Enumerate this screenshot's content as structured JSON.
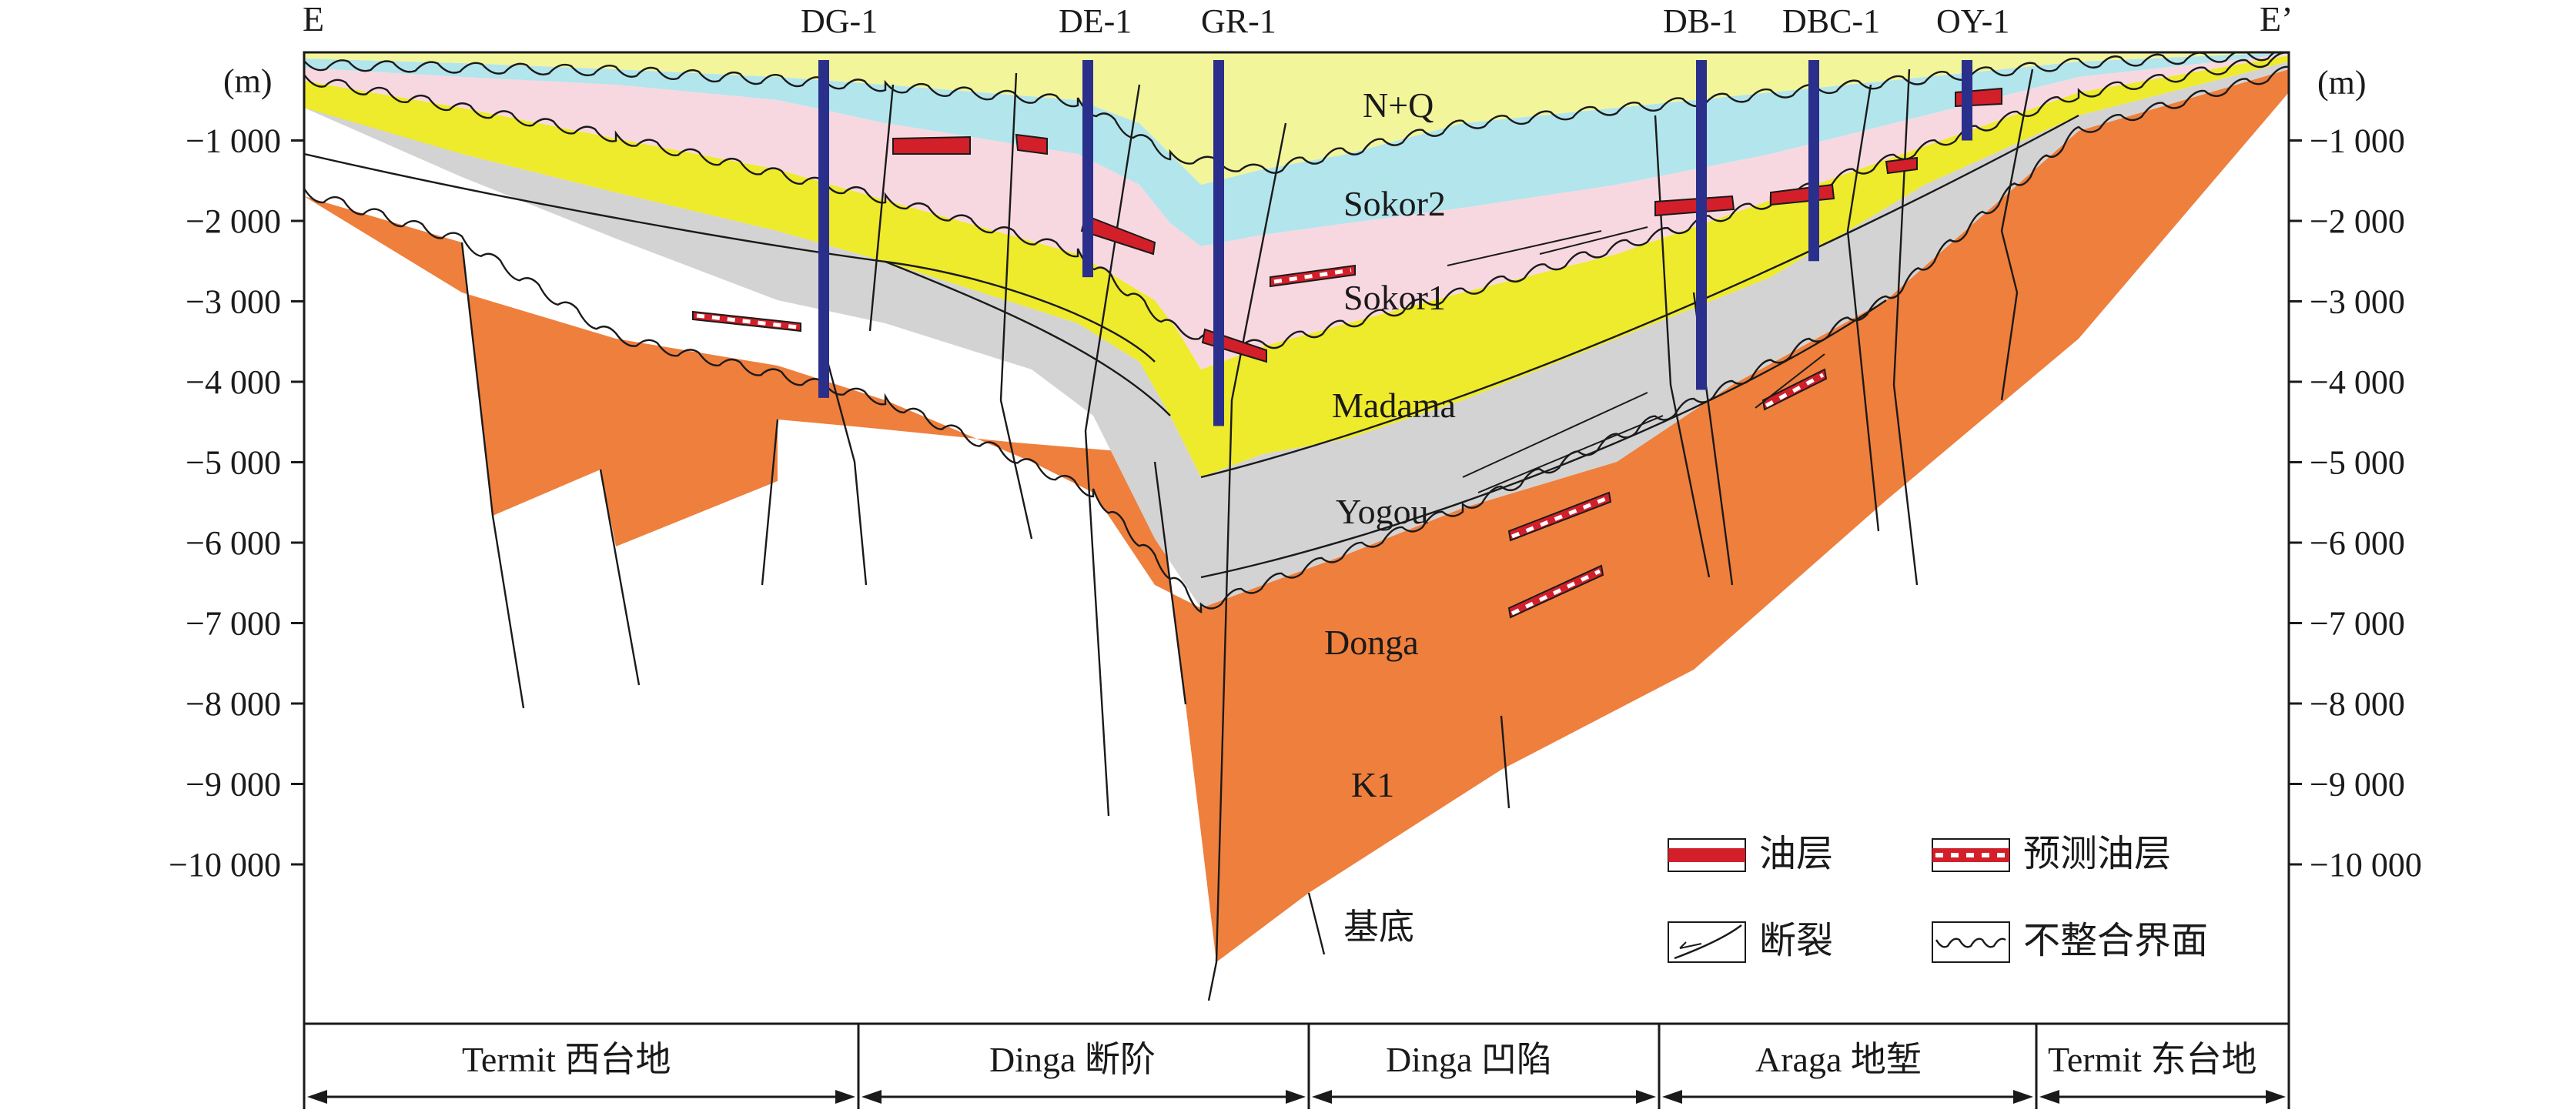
{
  "section": {
    "end_left": "E",
    "end_right": "E’",
    "depth_unit_left": "(m)",
    "depth_unit_right": "(m)",
    "depth_ticks": [
      {
        "value": -1000,
        "label": "−1 000"
      },
      {
        "value": -2000,
        "label": "−2 000"
      },
      {
        "value": -3000,
        "label": "−3 000"
      },
      {
        "value": -4000,
        "label": "−4 000"
      },
      {
        "value": -5000,
        "label": "−5 000"
      },
      {
        "value": -6000,
        "label": "−6 000"
      },
      {
        "value": -7000,
        "label": "−7 000"
      },
      {
        "value": -8000,
        "label": "−8 000"
      },
      {
        "value": -9000,
        "label": "−9 000"
      },
      {
        "value": -10000,
        "label": "−10 000"
      }
    ]
  },
  "wells": [
    {
      "id": "dg1",
      "label": "DG-1"
    },
    {
      "id": "de1",
      "label": "DE-1"
    },
    {
      "id": "gr1",
      "label": "GR-1"
    },
    {
      "id": "db1",
      "label": "DB-1"
    },
    {
      "id": "dbc1",
      "label": "DBC-1"
    },
    {
      "id": "oy1",
      "label": "OY-1"
    }
  ],
  "formations": [
    {
      "id": "nq",
      "label": "N+Q",
      "color": "#f2f59a"
    },
    {
      "id": "sokor2",
      "label": "Sokor2",
      "color": "#b3e5ec"
    },
    {
      "id": "sokor1",
      "label": "Sokor1",
      "color": "#f8d8e0"
    },
    {
      "id": "madama",
      "label": "Madama",
      "color": "#eeea2c"
    },
    {
      "id": "yogou",
      "label": "Yogou",
      "color": "#d3d3d3"
    },
    {
      "id": "donga",
      "label": "Donga",
      "color": "#d3d3d3"
    },
    {
      "id": "k1",
      "label": "K1",
      "color": "#ef7f3c"
    },
    {
      "id": "basement",
      "label": "基底",
      "color": "#ffffff"
    }
  ],
  "legend": {
    "oil_layer": "油层",
    "predicted_oil_layer": "预测油层",
    "fault": "断裂",
    "unconformity": "不整合界面"
  },
  "regions": [
    {
      "id": "termit-west",
      "label": "Termit 西台地"
    },
    {
      "id": "dinga-step",
      "label": "Dinga 断阶"
    },
    {
      "id": "dinga-sag",
      "label": "Dinga 凹陷"
    },
    {
      "id": "araga-graben",
      "label": "Araga 地堑"
    },
    {
      "id": "termit-east",
      "label": "Termit 东台地"
    }
  ],
  "colors": {
    "well": "#2a2f8c",
    "oil": "#d21f2a",
    "frame": "#1a1a1a"
  }
}
